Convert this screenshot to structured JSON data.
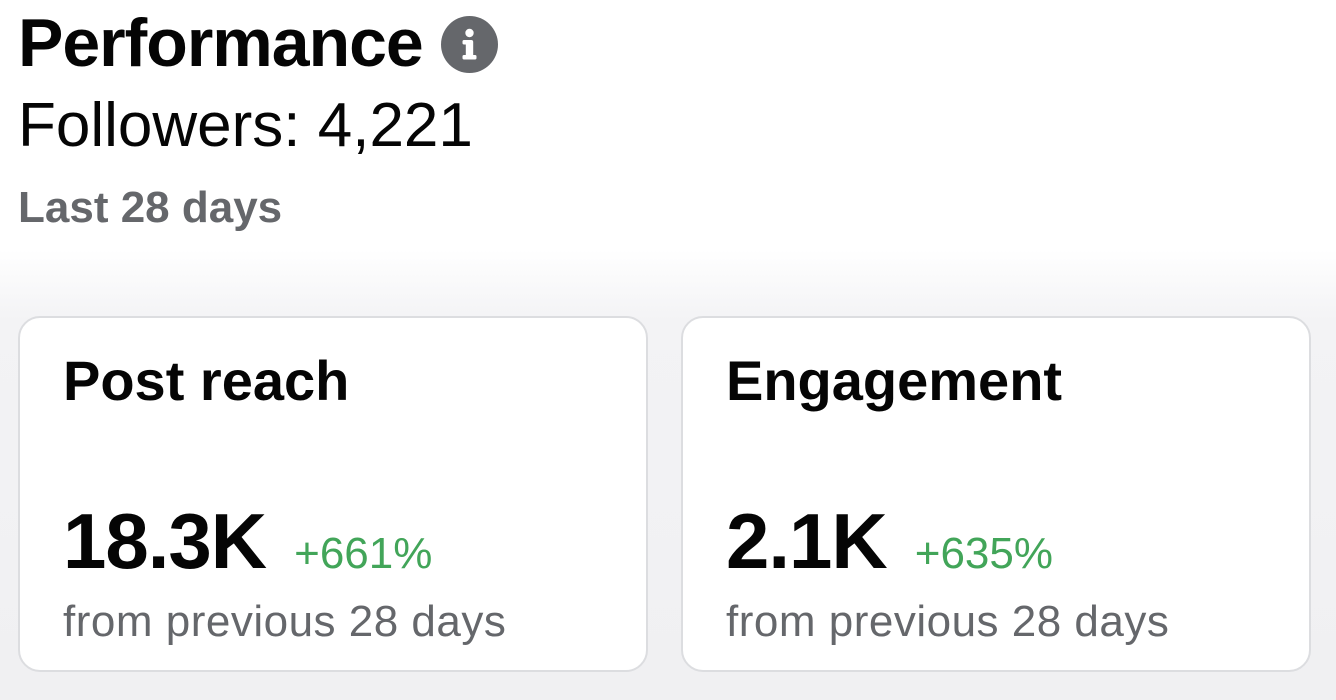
{
  "header": {
    "title": "Performance",
    "info_icon": "info-icon",
    "followers": "Followers: 4,221",
    "date_range": "Last 28 days"
  },
  "cards": [
    {
      "title": "Post reach",
      "value": "18.3K",
      "change": "+661%",
      "comparison": "from previous 28 days"
    },
    {
      "title": "Engagement",
      "value": "2.1K",
      "change": "+635%",
      "comparison": "from previous 28 days"
    }
  ],
  "colors": {
    "positive_change": "#42a559",
    "secondary_text": "#65676b",
    "primary_text": "#050505"
  }
}
